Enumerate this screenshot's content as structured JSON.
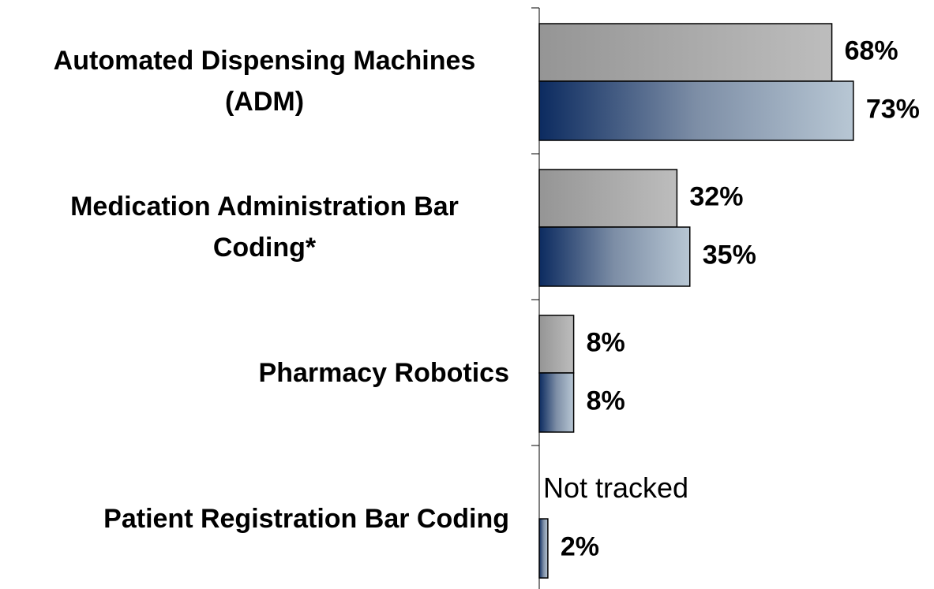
{
  "chart_data": {
    "type": "bar",
    "orientation": "horizontal",
    "categories": [
      "Automated Dispensing Machines (ADM)",
      "Medication Administration Bar Coding*",
      "Pharmacy Robotics",
      "Patient Registration Bar Coding"
    ],
    "series": [
      {
        "color": "#aaaaaa",
        "values": [
          68,
          32,
          8,
          null
        ],
        "value_labels": [
          "68%",
          "32%",
          "8%",
          "Not tracked"
        ]
      },
      {
        "color": "#1a3a6e",
        "values": [
          73,
          35,
          8,
          2
        ],
        "value_labels": [
          "73%",
          "35%",
          "8%",
          "2%"
        ]
      }
    ],
    "xlim": [
      0,
      100
    ]
  }
}
